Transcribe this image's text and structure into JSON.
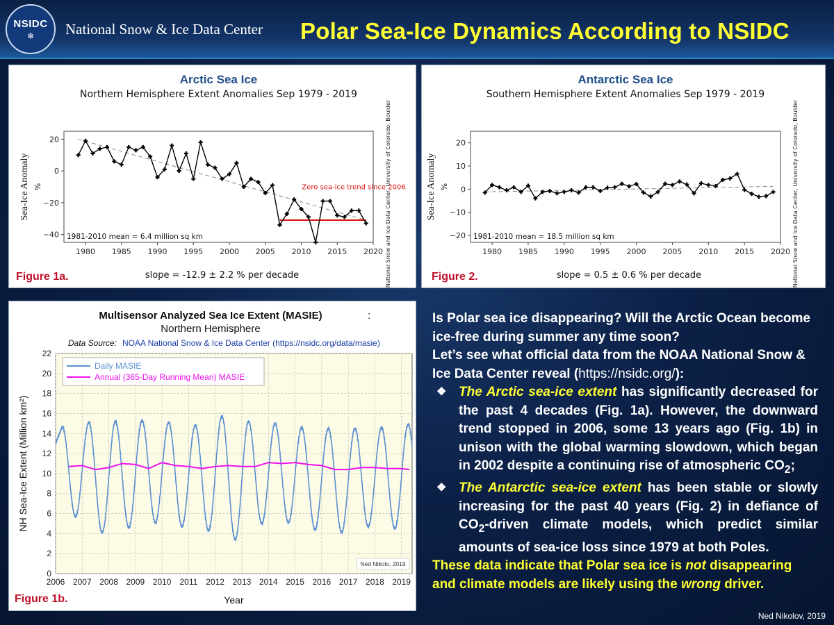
{
  "header": {
    "logo_text": "NSIDC",
    "org_name": "National Snow & Ice Data Center",
    "title": "Polar Sea-Ice Dynamics According to NSIDC"
  },
  "colors": {
    "title_yellow": "#ffff33",
    "fig_label_red": "#c0102a",
    "masie_blue": "#5b8fd1",
    "masie_magenta": "#ee11ee",
    "trend_red": "#dd1111"
  },
  "chart_data": [
    {
      "id": "fig1a",
      "type": "line",
      "title": "Arctic Sea Ice",
      "subtitle": "Northern Hemisphere Extent Anomalies Sep 1979 - 2019",
      "ylabel": "Sea-Ice Anomaly",
      "yunit": "%",
      "side_label": "National Snow and Ice Data Center, University of Colorado, Boulder",
      "mean_note": "1981-2010 mean = 6.4 million sq km",
      "slope_note": "slope = -12.9 ± 2.2 % per decade",
      "figure_label": "Figure 1a.",
      "annotation": "Zero sea-ice trend since 2006",
      "xlim": [
        1977,
        2020
      ],
      "ylim": [
        -45,
        25
      ],
      "xticks": [
        1980,
        1985,
        1990,
        1995,
        2000,
        2005,
        2010,
        2015,
        2020
      ],
      "yticks": [
        20,
        0,
        -20,
        -40
      ],
      "x": [
        1979,
        1980,
        1981,
        1982,
        1983,
        1984,
        1985,
        1986,
        1987,
        1988,
        1989,
        1990,
        1991,
        1992,
        1993,
        1994,
        1995,
        1996,
        1997,
        1998,
        1999,
        2000,
        2001,
        2002,
        2003,
        2004,
        2005,
        2006,
        2007,
        2008,
        2009,
        2010,
        2011,
        2012,
        2013,
        2014,
        2015,
        2016,
        2017,
        2018,
        2019
      ],
      "values": [
        10,
        19,
        11,
        14,
        15,
        6,
        4,
        15,
        13,
        15,
        9,
        -4,
        1,
        16,
        0,
        11,
        -5,
        18,
        4,
        2,
        -5,
        -2,
        5,
        -10,
        -5,
        -7,
        -14,
        -9,
        -34,
        -27,
        -18,
        -24,
        -29,
        -45,
        -19,
        -19,
        -28,
        -29,
        -25,
        -25,
        -33
      ],
      "trend": [
        [
          1979,
          20
        ],
        [
          2019,
          -31
        ]
      ],
      "flat_segment": {
        "x": [
          2007,
          2019
        ],
        "y": -31
      }
    },
    {
      "id": "fig2",
      "type": "line",
      "title": "Antarctic Sea Ice",
      "subtitle": "Southern Hemisphere Extent Anomalies Sep 1979 - 2019",
      "ylabel": "Sea-Ice Anomaly",
      "yunit": "%",
      "side_label": "National Snow and Ice Data Center, University of Colorado, Boulder",
      "mean_note": "1981-2010 mean = 18.5 million sq km",
      "slope_note": "slope = 0.5 ± 0.6 % per decade",
      "figure_label": "Figure 2.",
      "xlim": [
        1977,
        2020
      ],
      "ylim": [
        -23,
        25
      ],
      "xticks": [
        1980,
        1985,
        1990,
        1995,
        2000,
        2005,
        2010,
        2015,
        2020
      ],
      "yticks": [
        20,
        10,
        0,
        -10,
        -20
      ],
      "x": [
        1979,
        1980,
        1981,
        1982,
        1983,
        1984,
        1985,
        1986,
        1987,
        1988,
        1989,
        1990,
        1991,
        1992,
        1993,
        1994,
        1995,
        1996,
        1997,
        1998,
        1999,
        2000,
        2001,
        2002,
        2003,
        2004,
        2005,
        2006,
        2007,
        2008,
        2009,
        2010,
        2011,
        2012,
        2013,
        2014,
        2015,
        2016,
        2017,
        2018,
        2019
      ],
      "values": [
        -1.5,
        1.8,
        0.8,
        -0.5,
        0.8,
        -1.2,
        1.5,
        -4,
        -1.2,
        -0.8,
        -1.8,
        -1.2,
        -0.5,
        -1.5,
        0.8,
        0.8,
        -0.8,
        0.6,
        0.8,
        2.3,
        1.2,
        2.2,
        -1.5,
        -3.2,
        -1.2,
        2.3,
        1.8,
        3.3,
        2,
        -1.8,
        2.5,
        1.8,
        1.3,
        4,
        4.6,
        6.6,
        -0.3,
        -2,
        -3.3,
        -3,
        -1.2
      ],
      "trend": [
        [
          1979,
          -1.2
        ],
        [
          2019,
          1.2
        ]
      ]
    },
    {
      "id": "fig1b",
      "type": "line",
      "title": "Multisensor Analyzed Sea Ice Extent (MASIE)",
      "title_suffix": ":",
      "subtitle": "Northern Hemisphere",
      "source_prefix": "Data Source:",
      "source_text": "NOAA National Snow & Ice Data Center (https://nsidc.org/data/masie)",
      "xlabel": "Year",
      "ylabel": "NH Sea-Ice Extent (Million km²)",
      "figure_label": "Figure 1b.",
      "credit": "Ned Nikolo, 2019",
      "xlim": [
        2006,
        2019.4
      ],
      "ylim": [
        0,
        22
      ],
      "xticks": [
        2006,
        2007,
        2008,
        2009,
        2010,
        2011,
        2012,
        2013,
        2014,
        2015,
        2016,
        2017,
        2018,
        2019
      ],
      "yticks": [
        0,
        2,
        4,
        6,
        8,
        10,
        12,
        14,
        16,
        18,
        20,
        22
      ],
      "series": [
        {
          "name": "Daily MASIE",
          "color": "#5b8fd1",
          "annual_peaks": [
            14.7,
            15.1,
            15.2,
            15.3,
            15.1,
            14.8,
            15.7,
            15.2,
            15.0,
            14.6,
            14.5,
            14.5,
            14.6,
            14.9
          ],
          "annual_minima": [
            5.7,
            4.1,
            4.6,
            5.1,
            4.7,
            4.3,
            3.4,
            5.0,
            5.1,
            4.4,
            4.1,
            4.7,
            4.5
          ],
          "peak_month": 3.0,
          "min_month": 9.0
        },
        {
          "name": "Annual (365-Day Running Mean) MASIE",
          "color": "#ee11ee",
          "x": [
            2006.5,
            2007.0,
            2007.5,
            2008.0,
            2008.5,
            2009.0,
            2009.5,
            2010.0,
            2010.5,
            2011.0,
            2011.5,
            2012.0,
            2012.5,
            2013.0,
            2013.5,
            2014.0,
            2014.5,
            2015.0,
            2015.5,
            2016.0,
            2016.5,
            2017.0,
            2017.5,
            2018.0,
            2018.5,
            2019.0,
            2019.3
          ],
          "values": [
            10.7,
            10.8,
            10.4,
            10.6,
            11.0,
            10.9,
            10.5,
            11.1,
            10.8,
            10.7,
            10.5,
            10.7,
            10.8,
            10.7,
            10.7,
            11.1,
            11.0,
            11.1,
            10.9,
            10.8,
            10.4,
            10.4,
            10.6,
            10.6,
            10.5,
            10.5,
            10.4
          ]
        }
      ]
    }
  ],
  "text": {
    "q1": "Is Polar sea ice disappearing? Will the Arctic Ocean become ice-free during summer any time soon?",
    "q2_a": "Let’s see what official data from the NOAA National Snow & Ice Data Center reveal (",
    "q2_link": "https://nsidc.org/",
    "q2_b": "):",
    "b1_lead": "The Arctic sea-ice extent",
    "b1_a": " has significantly decreased for the past 4 decades (Fig. 1a). However, the downward trend stopped in 2006, some 13 years ago (Fig. 1b) in unison with the global warming slowdown, which began in 2002 despite a continuing rise of atmospheric CO",
    "b1_sub": "2",
    "b1_b": ";",
    "b2_lead": "The Antarctic sea-ice extent",
    "b2_a": " has been stable or slowly increasing for the past 40 years (Fig. 2) in defiance of CO",
    "b2_sub": "2",
    "b2_b": "-driven climate models, which predict similar amounts of sea-ice loss since 1979 at both Poles.",
    "c_a": "These data indicate that Polar sea ice is ",
    "c_not": "not",
    "c_b": " disappearing and climate models are likely using the ",
    "c_wrong": "wrong",
    "c_c": " driver."
  },
  "credit": "Ned Nikolov, 2019"
}
